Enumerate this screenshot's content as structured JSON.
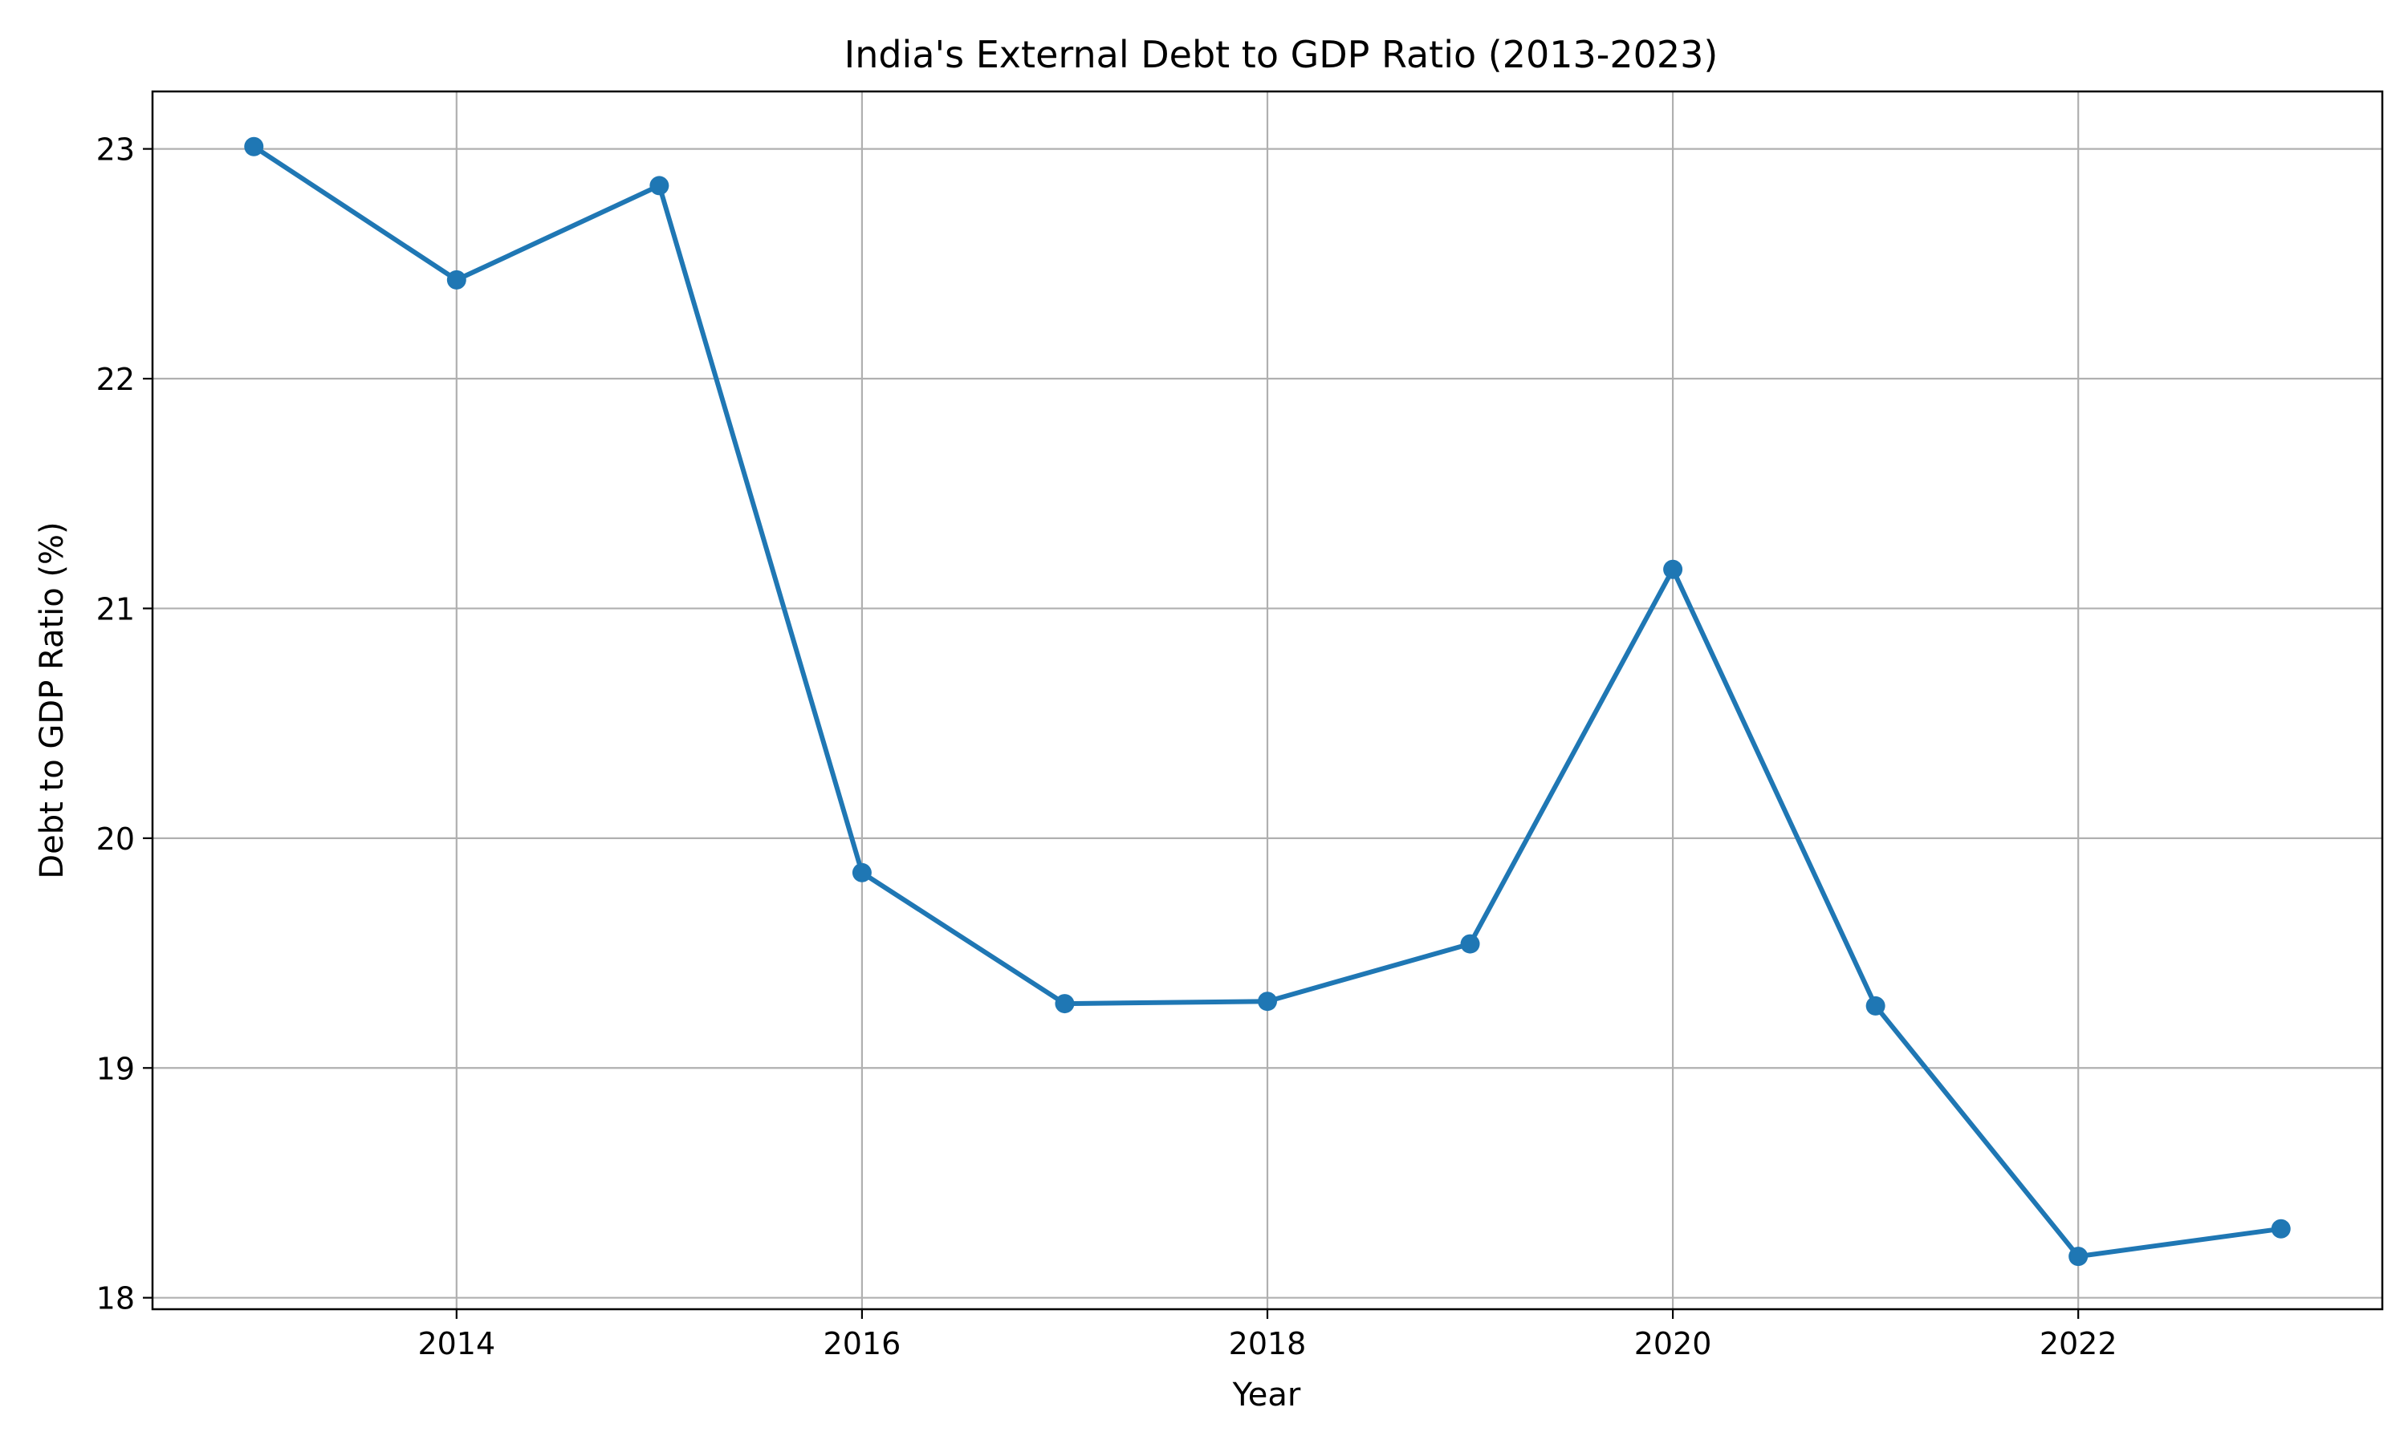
{
  "chart_data": {
    "type": "line",
    "title": "India's External Debt to GDP Ratio (2013-2023)",
    "xlabel": "Year",
    "ylabel": "Debt to GDP Ratio (%)",
    "x": [
      2013,
      2014,
      2015,
      2016,
      2017,
      2018,
      2019,
      2020,
      2021,
      2022,
      2023
    ],
    "series": [
      {
        "values": [
          23.01,
          22.43,
          22.84,
          19.85,
          19.28,
          19.29,
          19.54,
          21.17,
          19.27,
          18.18,
          18.3
        ],
        "color": "#1f77b4",
        "marker": "circle"
      }
    ],
    "xlim": [
      2012.5,
      2023.5
    ],
    "ylim": [
      17.95,
      23.25
    ],
    "xticks": [
      2014,
      2016,
      2018,
      2020,
      2022
    ],
    "xtick_labels": [
      "2014",
      "2016",
      "2018",
      "2020",
      "2022"
    ],
    "yticks": [
      18,
      19,
      20,
      21,
      22,
      23
    ],
    "ytick_labels": [
      "18",
      "19",
      "20",
      "21",
      "22",
      "23"
    ],
    "grid": true,
    "legend": "none"
  }
}
